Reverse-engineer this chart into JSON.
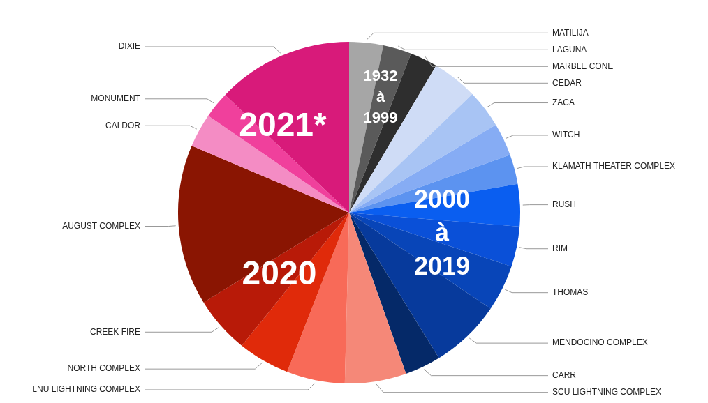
{
  "chart_data": {
    "type": "pie",
    "categories": [
      "MATILIJA",
      "LAGUNA",
      "MARBLE CONE",
      "CEDAR",
      "ZACA",
      "WITCH",
      "KLAMATH THEATER COMPLEX",
      "RUSH",
      "RIM",
      "THOMAS",
      "MENDOCINO COMPLEX",
      "CARR",
      "SCU LIGHTNING COMPLEX",
      "LNU LIGHTNING COMPLEX",
      "NORTH COMPLEX",
      "CREEK FIRE",
      "AUGUST COMPLEX",
      "CALDOR",
      "MONUMENT",
      "DIXIE"
    ],
    "values": [
      3.2,
      2.7,
      2.6,
      4.3,
      3.6,
      3.1,
      2.8,
      4.0,
      3.8,
      4.4,
      6.7,
      3.4,
      5.8,
      5.5,
      4.9,
      5.4,
      15.2,
      3.2,
      2.5,
      12.9
    ],
    "colors": [
      "#a6a6a6",
      "#5a5a5a",
      "#2e2e2e",
      "#cfdcf6",
      "#a8c4f4",
      "#86acf4",
      "#5c93f0",
      "#0a5ef0",
      "#0a50d8",
      "#0845b8",
      "#073a9c",
      "#052968",
      "#f58878",
      "#f86a58",
      "#e02a0a",
      "#b81a08",
      "#8a1502",
      "#f48cc4",
      "#f0409c",
      "#d81a7a"
    ],
    "annotations": [
      "1932 à 1999",
      "2000 à 2019",
      "2020",
      "2021*"
    ],
    "legend": false
  }
}
